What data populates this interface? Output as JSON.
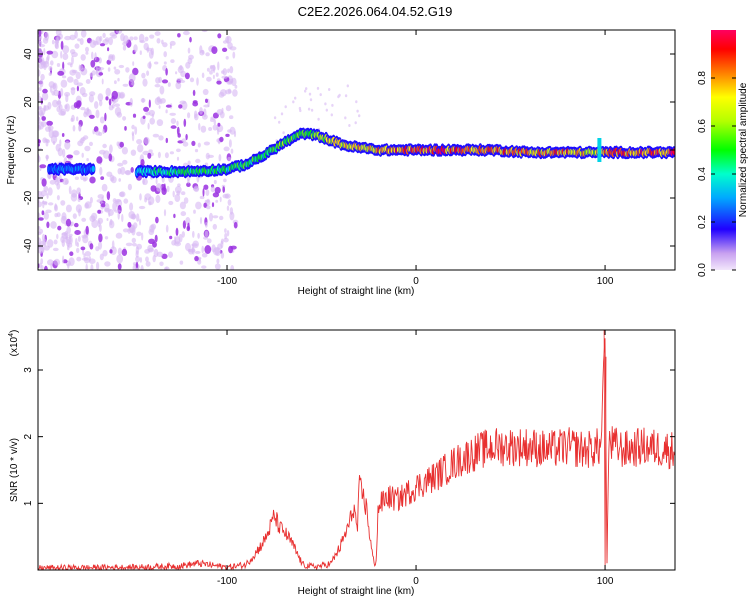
{
  "title": "C2E2.2026.064.04.52.G19",
  "chart_data": [
    {
      "type": "heatmap",
      "title": "C2E2.2026.064.04.52.G19",
      "xlabel": "Height of straight line (km)",
      "ylabel": "Frequency (Hz)",
      "xlim": [
        -200,
        137
      ],
      "ylim": [
        -50,
        50
      ],
      "xticks": [
        -100,
        0,
        100
      ],
      "yticks": [
        -40,
        -20,
        0,
        20,
        40
      ],
      "colorbar": {
        "label": "Normalized spectral amplitude",
        "range": [
          0,
          1
        ],
        "ticks": [
          0.0,
          0.2,
          0.4,
          0.6,
          0.8
        ],
        "tick_labels": [
          "0.0",
          "0.2",
          "0.4",
          "0.6",
          "0.8"
        ]
      },
      "ridge": {
        "x": [
          -190,
          -165,
          -150,
          -140,
          -120,
          -100,
          -90,
          -80,
          -70,
          -60,
          -52,
          -45,
          -38,
          -30,
          -20,
          -10,
          0,
          20,
          40,
          60,
          80,
          95,
          100,
          137
        ],
        "freq": [
          -8,
          -8,
          -9,
          -9,
          -9,
          -8,
          -6,
          -2,
          3,
          7,
          6,
          4,
          2,
          1,
          0,
          0,
          0,
          0,
          0,
          -1,
          -1,
          -1,
          -1,
          -1
        ],
        "amplitude": [
          0.3,
          0.3,
          0.4,
          0.45,
          0.5,
          0.5,
          0.55,
          0.55,
          0.6,
          0.55,
          0.6,
          0.75,
          0.8,
          0.8,
          0.85,
          0.9,
          0.95,
          0.95,
          0.9,
          0.85,
          0.9,
          0.7,
          0.9,
          0.95
        ]
      },
      "spur": {
        "x": 97,
        "freq_range": [
          -5,
          5
        ]
      }
    },
    {
      "type": "line",
      "xlabel": "Height of straight line (km)",
      "ylabel": "SNR (10 * v/v)",
      "y_multiplier_label": "(x10",
      "y_multiplier_exp": "4",
      "y_multiplier_close": ")",
      "xlim": [
        -200,
        137
      ],
      "ylim": [
        0,
        3.6
      ],
      "xticks": [
        -100,
        0,
        100
      ],
      "yticks": [
        1,
        2,
        3
      ],
      "series": [
        {
          "name": "SNR",
          "color": "#e83030",
          "x": [
            -200,
            -150,
            -125,
            -115,
            -100,
            -90,
            -85,
            -80,
            -77,
            -75,
            -72,
            -70,
            -66,
            -63,
            -60,
            -55,
            -50,
            -45,
            -40,
            -35,
            -33,
            -31,
            -30,
            -28,
            -26,
            -24,
            -22,
            -21,
            -20,
            -15,
            -10,
            0,
            10,
            20,
            30,
            40,
            50,
            60,
            70,
            80,
            90,
            98,
            99,
            100,
            101,
            102,
            110,
            120,
            137
          ],
          "y": [
            0.03,
            0.04,
            0.06,
            0.1,
            0.04,
            0.08,
            0.25,
            0.45,
            0.65,
            0.82,
            0.62,
            0.58,
            0.42,
            0.25,
            0.08,
            0.05,
            0.06,
            0.1,
            0.35,
            0.72,
            0.95,
            0.6,
            1.25,
            1.1,
            0.9,
            0.4,
            0.05,
            0.2,
            0.95,
            1.1,
            1.05,
            1.25,
            1.4,
            1.6,
            1.75,
            1.85,
            1.85,
            1.85,
            1.8,
            1.85,
            1.8,
            1.85,
            3.0,
            3.5,
            0.1,
            1.9,
            1.8,
            1.85,
            1.8
          ]
        }
      ]
    }
  ]
}
